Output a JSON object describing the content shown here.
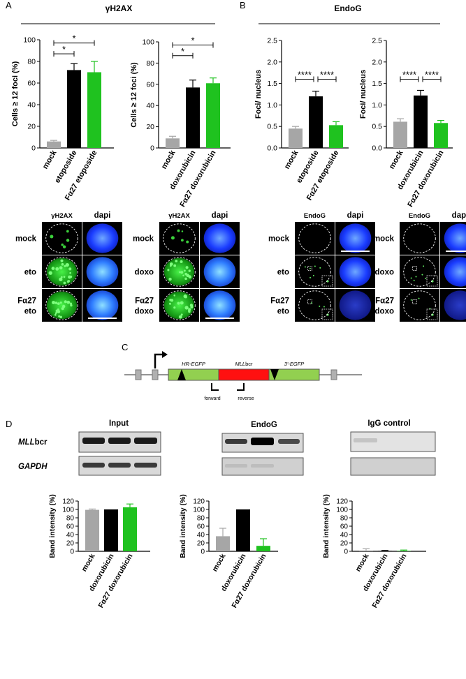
{
  "panel_letters": {
    "a": "A",
    "b": "B",
    "c": "C",
    "d": "D"
  },
  "colors": {
    "mock": "#a6a6a6",
    "treated": "#000000",
    "falpha27": "#1fc21f"
  },
  "headers": {
    "a": "γH2AX",
    "b": "EndoG"
  },
  "micro_labels": {
    "a1": {
      "cols": [
        "γH2AX",
        "dapi"
      ],
      "rows": [
        [
          "mock"
        ],
        [
          "eto"
        ],
        [
          "Fα27",
          "eto"
        ]
      ]
    },
    "a2": {
      "cols": [
        "γH2AX",
        "dapi"
      ],
      "rows": [
        [
          "mock"
        ],
        [
          "doxo"
        ],
        [
          "Fα27",
          "doxo"
        ]
      ]
    },
    "b1": {
      "cols": [
        "EndoG",
        "dapi"
      ],
      "rows": [
        [
          "mock"
        ],
        [
          "eto"
        ],
        [
          "Fα27",
          "eto"
        ]
      ]
    },
    "b2": {
      "cols": [
        "EndoG",
        "dapi"
      ],
      "rows": [
        [
          "mock"
        ],
        [
          "doxo"
        ],
        [
          "Fα27",
          "doxo"
        ]
      ]
    }
  },
  "diagram": {
    "hr_label": "HR-EGFP",
    "mll_label_italic": "MLL",
    "mll_label_rest": "bcr",
    "egfp3_label": "3'-EGFP",
    "forward": "forward",
    "reverse": "reverse"
  },
  "gels": {
    "input_title": "Input",
    "endog_title": "EndoG",
    "igg_title": "IgG control",
    "row1_label_italic": "MLL",
    "row1_label_rest": "bcr",
    "row2_label": "GAPDH"
  },
  "chart_data": [
    {
      "id": "a1",
      "type": "bar",
      "categories": [
        "mock",
        "etoposide",
        "Fα27 etoposide"
      ],
      "values": [
        6,
        72,
        70
      ],
      "errors": [
        1,
        6,
        10
      ],
      "ylabel": "Cells ≥ 12 foci (%)",
      "ylim": [
        0,
        100
      ],
      "yticks": [
        0,
        20,
        40,
        60,
        80,
        100
      ],
      "significance": [
        {
          "from": 0,
          "to": 1,
          "label": "*"
        },
        {
          "from": 0,
          "to": 2,
          "label": "*"
        }
      ]
    },
    {
      "id": "a2",
      "type": "bar",
      "categories": [
        "mock",
        "doxorubicin",
        "Fα27 doxorubicin"
      ],
      "values": [
        9,
        57,
        61
      ],
      "errors": [
        2,
        7,
        5
      ],
      "ylabel": "Cells ≥ 12 foci (%)",
      "ylim": [
        0,
        100
      ],
      "yticks": [
        0,
        20,
        40,
        60,
        80,
        100
      ],
      "significance": [
        {
          "from": 0,
          "to": 1,
          "label": "*"
        },
        {
          "from": 0,
          "to": 2,
          "label": "*"
        }
      ]
    },
    {
      "id": "b1",
      "type": "bar",
      "categories": [
        "mock",
        "etoposide",
        "Fα27 etoposide"
      ],
      "values": [
        0.45,
        1.2,
        0.53
      ],
      "errors": [
        0.05,
        0.12,
        0.08
      ],
      "ylabel": "Foci/ nucleus",
      "ylim": [
        0,
        2.5
      ],
      "yticks": [
        "0.0",
        "0.5",
        "1.0",
        "1.5",
        "2.0",
        "2.5"
      ],
      "significance": [
        {
          "from": 0,
          "to": 1,
          "label": "****"
        },
        {
          "from": 1,
          "to": 2,
          "label": "****"
        }
      ]
    },
    {
      "id": "b2",
      "type": "bar",
      "categories": [
        "mock",
        "doxorubicin",
        "Fα27 doxorubicin"
      ],
      "values": [
        0.61,
        1.22,
        0.58
      ],
      "errors": [
        0.07,
        0.12,
        0.06
      ],
      "ylabel": "Foci/ nucleus",
      "ylim": [
        0,
        2.5
      ],
      "yticks": [
        "0.0",
        "0.5",
        "1.0",
        "1.5",
        "2.0",
        "2.5"
      ],
      "significance": [
        {
          "from": 0,
          "to": 1,
          "label": "****"
        },
        {
          "from": 1,
          "to": 2,
          "label": "****"
        }
      ]
    },
    {
      "id": "d1",
      "type": "bar",
      "categories": [
        "mock",
        "doxorubicin",
        "Fα27 doxorubicin"
      ],
      "values": [
        99,
        100,
        105
      ],
      "errors": [
        2,
        0,
        8
      ],
      "ylabel": "Band intensity (%)",
      "ylim": [
        0,
        120
      ],
      "yticks": [
        0,
        20,
        40,
        60,
        80,
        100,
        120
      ]
    },
    {
      "id": "d2",
      "type": "bar",
      "categories": [
        "mock",
        "doxorubicin",
        "Fα27 doxorubicin"
      ],
      "values": [
        36,
        100,
        13
      ],
      "errors": [
        19,
        0,
        17
      ],
      "ylabel": "Band intensity (%)",
      "ylim": [
        0,
        120
      ],
      "yticks": [
        0,
        20,
        40,
        60,
        80,
        100,
        120
      ]
    },
    {
      "id": "d3",
      "type": "bar",
      "categories": [
        "mock",
        "doxorubicin",
        "Fα27 doxorubicin"
      ],
      "values": [
        2,
        1,
        1
      ],
      "errors": [
        4,
        1,
        2
      ],
      "ylabel": "Band intensity (%)",
      "ylim": [
        0,
        120
      ],
      "yticks": [
        0,
        20,
        40,
        60,
        80,
        100,
        120
      ]
    }
  ]
}
